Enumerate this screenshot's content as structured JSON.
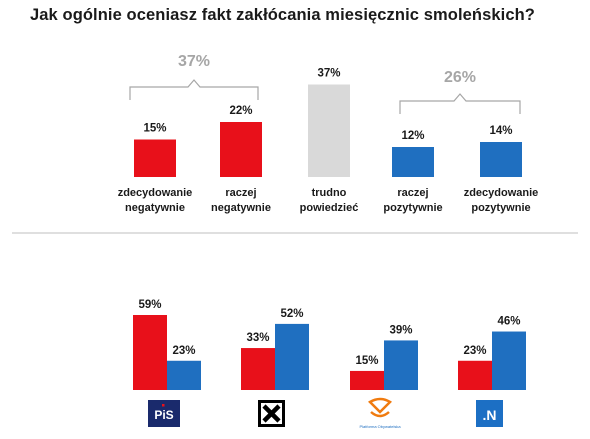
{
  "title": "Jak ogólnie oceniasz fakt zakłócania miesięcznic smoleńskich?",
  "colors": {
    "negative": "#e8101a",
    "neutral": "#d9d9d9",
    "positive": "#1f6fc0",
    "bracket": "#a6a6a6",
    "divider": "#bfbfbf"
  },
  "chart_data": [
    {
      "type": "bar",
      "title": "Jak ogólnie oceniasz fakt zakłócania miesięcznic smoleńskich?",
      "categories": [
        [
          "zdecydowanie",
          "negatywnie"
        ],
        [
          "raczej",
          "negatywnie"
        ],
        [
          "trudno",
          "powiedzieć"
        ],
        [
          "raczej",
          "pozytywnie"
        ],
        [
          "zdecydowanie",
          "pozytywnie"
        ]
      ],
      "values": [
        15,
        22,
        37,
        12,
        14
      ],
      "value_labels": [
        "15%",
        "22%",
        "37%",
        "12%",
        "14%"
      ],
      "group_totals": [
        {
          "label": "37%",
          "covers": [
            0,
            1
          ]
        },
        {
          "label": "26%",
          "covers": [
            3,
            4
          ]
        }
      ],
      "ylim": [
        0,
        40
      ],
      "grid": false
    },
    {
      "type": "bar",
      "categories": [
        "PiS",
        "Kukiz'15",
        "Platforma Obywatelska",
        "Nowoczesna"
      ],
      "series": [
        {
          "values": [
            59,
            33,
            15,
            23
          ],
          "labels": [
            "59%",
            "33%",
            "15%",
            "23%"
          ]
        },
        {
          "values": [
            23,
            52,
            39,
            46
          ],
          "labels": [
            "23%",
            "52%",
            "39%",
            "46%"
          ]
        }
      ],
      "ylim": [
        0,
        65
      ],
      "grid": false,
      "legend": "none",
      "logo_text": {
        "pis": "PiS",
        "po": "Platforma Obywatelska",
        "nowoczesna": ".N"
      }
    }
  ]
}
